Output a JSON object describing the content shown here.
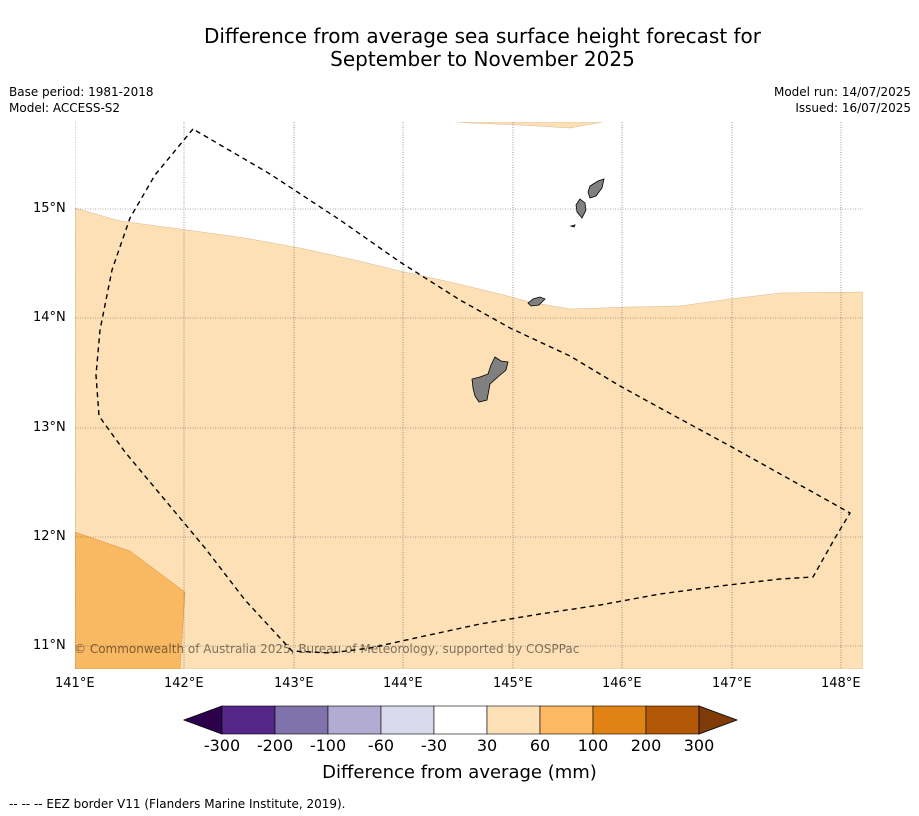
{
  "title_line1": "Difference from average sea surface height forecast for",
  "title_line2": "September to November 2025",
  "meta_left": {
    "base_period": "Base period: 1981-2018",
    "model": "Model: ACCESS-S2"
  },
  "meta_right": {
    "model_run": "Model run: 14/07/2025",
    "issued": "Issued: 16/07/2025"
  },
  "map": {
    "lon_labels": [
      "141°E",
      "142°E",
      "143°E",
      "144°E",
      "145°E",
      "146°E",
      "147°E",
      "148°E"
    ],
    "lat_labels": [
      "15°N",
      "14°N",
      "13°N",
      "12°N",
      "11°N"
    ],
    "copyright": "© Commonwealth of Australia 2025, Bureau of Meteorology, supported by COSPPac",
    "colors": {
      "band_30_60": "#fde0b6",
      "band_60_100": "#f9b862",
      "land": "#808080",
      "eez": "#000000"
    }
  },
  "colorbar": {
    "ticks": [
      "-300",
      "-200",
      "-100",
      "-60",
      "-30",
      "30",
      "60",
      "100",
      "200",
      "300"
    ],
    "colors": [
      "#2d004b",
      "#542788",
      "#8073ac",
      "#b2abd2",
      "#d8daeb",
      "#ffffff",
      "#fee0b6",
      "#fdb863",
      "#e08214",
      "#b35806",
      "#7f3b08"
    ],
    "label": "Difference from average (mm)"
  },
  "footnote": "--  --  -- EEZ border V11 (Flanders Marine Institute, 2019)."
}
